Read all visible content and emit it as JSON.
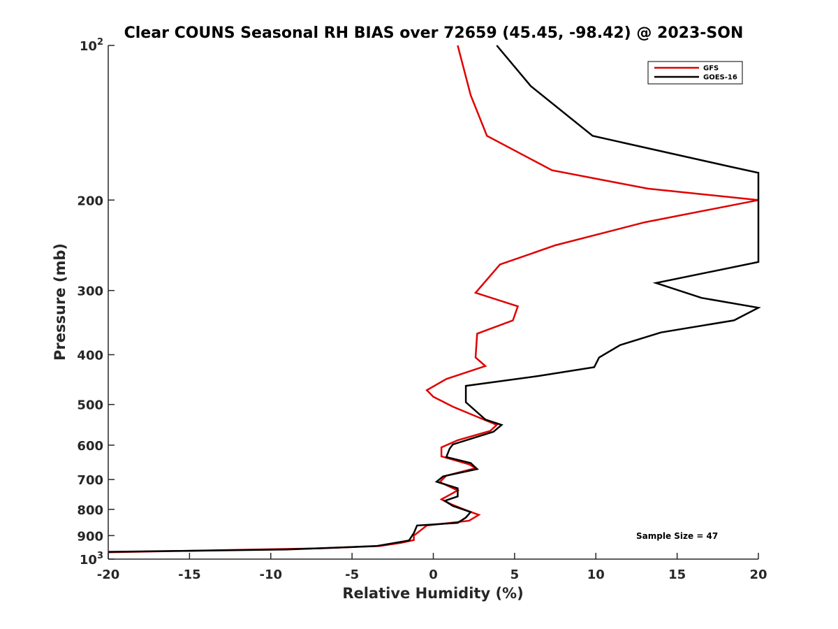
{
  "chart_data": {
    "type": "line",
    "title": "Clear COUNS Seasonal RH BIAS over 72659 (45.45, -98.42) @ 2023-SON",
    "xlabel": "Relative Humidity (%)",
    "ylabel": "Pressure (mb)",
    "xlim": [
      -20,
      20
    ],
    "ylim": [
      100,
      1000
    ],
    "y_scale": "log",
    "y_reversed": true,
    "grid": false,
    "legend_position": "top-right",
    "x_ticks": [
      -20,
      -15,
      -10,
      -5,
      0,
      5,
      10,
      15,
      20
    ],
    "x_tick_labels": [
      "-20",
      "-15",
      "-10",
      "-5",
      "0",
      "5",
      "10",
      "15",
      "20"
    ],
    "y_ticks": [
      100,
      200,
      300,
      400,
      500,
      600,
      700,
      800,
      900,
      1000
    ],
    "y_tick_labels": [
      {
        "base": "10",
        "exp": "2"
      },
      {
        "base": "200",
        "exp": ""
      },
      {
        "base": "300",
        "exp": ""
      },
      {
        "base": "400",
        "exp": ""
      },
      {
        "base": "500",
        "exp": ""
      },
      {
        "base": "600",
        "exp": ""
      },
      {
        "base": "700",
        "exp": ""
      },
      {
        "base": "800",
        "exp": ""
      },
      {
        "base": "900",
        "exp": ""
      },
      {
        "base": "10",
        "exp": "3"
      }
    ],
    "annotation": "Sample Size = 47",
    "series": [
      {
        "name": "GFS",
        "color": "#e00000",
        "points": [
          [
            1.5,
            100
          ],
          [
            2.3,
            125
          ],
          [
            3.3,
            150
          ],
          [
            7.3,
            175
          ],
          [
            13.2,
            190
          ],
          [
            20.0,
            200
          ],
          [
            13.0,
            221
          ],
          [
            7.5,
            245
          ],
          [
            4.1,
            267
          ],
          [
            2.6,
            303
          ],
          [
            5.2,
            322
          ],
          [
            4.9,
            343
          ],
          [
            2.7,
            364
          ],
          [
            2.6,
            405
          ],
          [
            3.2,
            421
          ],
          [
            0.8,
            446
          ],
          [
            -0.4,
            469
          ],
          [
            0.0,
            483
          ],
          [
            1.2,
            505
          ],
          [
            3.9,
            548
          ],
          [
            3.5,
            563
          ],
          [
            1.5,
            587
          ],
          [
            0.5,
            606
          ],
          [
            0.5,
            631
          ],
          [
            2.2,
            654
          ],
          [
            2.6,
            665
          ],
          [
            0.8,
            688
          ],
          [
            0.4,
            708
          ],
          [
            1.5,
            735
          ],
          [
            0.5,
            765
          ],
          [
            1.1,
            782
          ],
          [
            2.1,
            805
          ],
          [
            2.8,
            820
          ],
          [
            2.2,
            842
          ],
          [
            -0.4,
            860
          ],
          [
            -1.2,
            900
          ],
          [
            -1.2,
            918
          ],
          [
            -2.0,
            930
          ],
          [
            -3.3,
            943
          ],
          [
            -7.0,
            953
          ],
          [
            -20.0,
            970
          ]
        ]
      },
      {
        "name": "GOES-16",
        "color": "#000000",
        "points": [
          [
            3.9,
            100
          ],
          [
            6.0,
            120
          ],
          [
            9.8,
            150
          ],
          [
            18.2,
            172
          ],
          [
            20.0,
            177
          ],
          [
            20.0,
            264
          ],
          [
            13.7,
            290
          ],
          [
            16.5,
            310
          ],
          [
            20.0,
            324
          ],
          [
            18.5,
            343
          ],
          [
            14.0,
            362
          ],
          [
            11.5,
            383
          ],
          [
            10.2,
            405
          ],
          [
            9.9,
            423
          ],
          [
            6.5,
            440
          ],
          [
            2.0,
            460
          ],
          [
            2.0,
            470
          ],
          [
            2.0,
            480
          ],
          [
            2.0,
            495
          ],
          [
            3.2,
            535
          ],
          [
            4.2,
            548
          ],
          [
            3.7,
            565
          ],
          [
            1.2,
            598
          ],
          [
            1.0,
            610
          ],
          [
            0.8,
            633
          ],
          [
            2.3,
            650
          ],
          [
            2.7,
            668
          ],
          [
            0.6,
            690
          ],
          [
            0.2,
            707
          ],
          [
            1.5,
            728
          ],
          [
            1.5,
            755
          ],
          [
            0.7,
            770
          ],
          [
            1.2,
            788
          ],
          [
            2.3,
            810
          ],
          [
            2.0,
            830
          ],
          [
            1.5,
            850
          ],
          [
            -1.0,
            860
          ],
          [
            -1.2,
            890
          ],
          [
            -1.5,
            920
          ],
          [
            -3.5,
            943
          ],
          [
            -9.0,
            958
          ],
          [
            -20.0,
            968
          ]
        ]
      }
    ]
  }
}
